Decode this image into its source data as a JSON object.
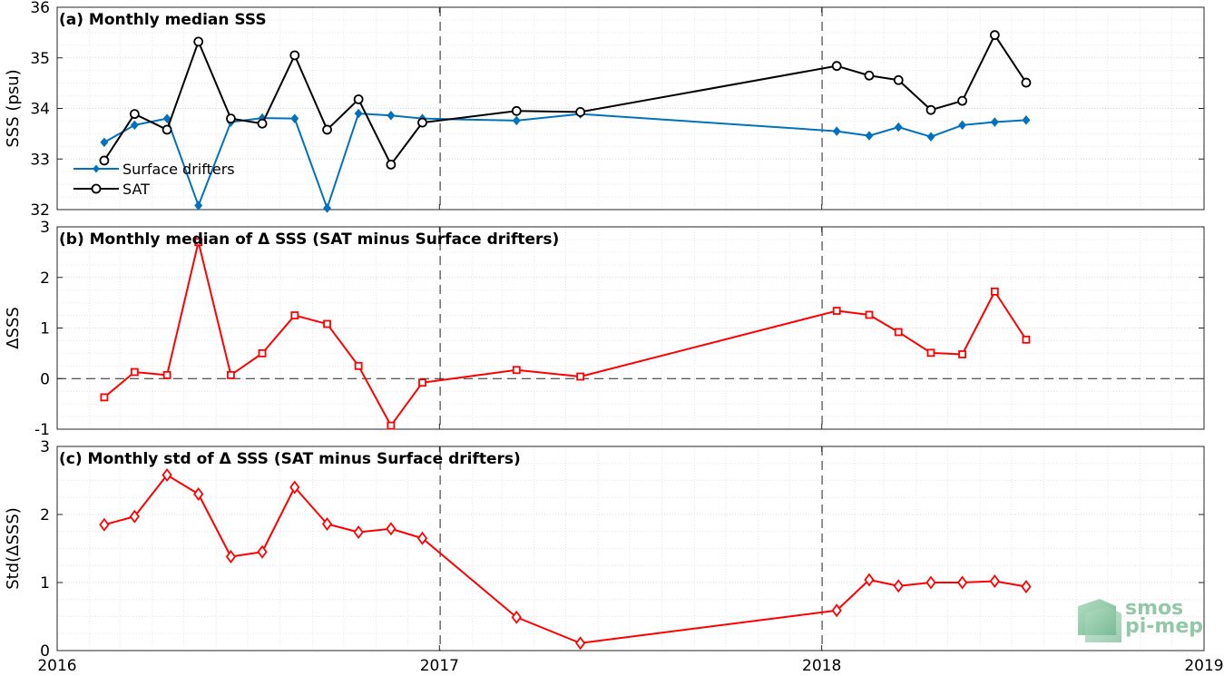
{
  "chart_data": [
    {
      "type": "line",
      "title": "(a) Monthly median SSS",
      "ylabel": "SSS (psu)",
      "ylim": [
        32,
        36
      ],
      "yticks": [
        32,
        33,
        34,
        35,
        36
      ],
      "grid": true,
      "legend_position": "bottom-left",
      "series": [
        {
          "name": "Surface drifters",
          "color": "#0072BD",
          "marker": "diamond",
          "x": [
            "2016-02-15",
            "2016-03-15",
            "2016-04-15",
            "2016-05-15",
            "2016-06-15",
            "2016-07-15",
            "2016-08-15",
            "2016-09-15",
            "2016-10-15",
            "2016-11-15",
            "2016-12-15",
            "2017-03-15",
            "2017-05-15",
            "2018-01-15",
            "2018-02-15",
            "2018-03-15",
            "2018-04-15",
            "2018-05-15",
            "2018-06-15",
            "2018-07-15"
          ],
          "y": [
            33.33,
            33.67,
            33.8,
            32.08,
            33.73,
            33.81,
            33.8,
            32.03,
            33.9,
            33.86,
            33.8,
            33.76,
            33.89,
            33.55,
            33.46,
            33.63,
            33.44,
            33.67,
            33.73,
            33.77
          ]
        },
        {
          "name": "SAT",
          "color": "#000000",
          "marker": "circle",
          "x": [
            "2016-02-15",
            "2016-03-15",
            "2016-04-15",
            "2016-05-15",
            "2016-06-15",
            "2016-07-15",
            "2016-08-15",
            "2016-09-15",
            "2016-10-15",
            "2016-11-15",
            "2016-12-15",
            "2017-03-15",
            "2017-05-15",
            "2018-01-15",
            "2018-02-15",
            "2018-03-15",
            "2018-04-15",
            "2018-05-15",
            "2018-06-15",
            "2018-07-15"
          ],
          "y": [
            32.97,
            33.89,
            33.58,
            35.32,
            33.8,
            33.7,
            35.05,
            33.58,
            34.18,
            32.89,
            33.72,
            33.95,
            33.93,
            34.84,
            34.65,
            34.56,
            33.97,
            34.15,
            35.45,
            34.51
          ]
        }
      ]
    },
    {
      "type": "line",
      "title": "(b) Monthly median of Δ SSS (SAT minus Surface drifters)",
      "ylabel": "ΔSSS",
      "ylim": [
        -1,
        3
      ],
      "yticks": [
        -1,
        0,
        1,
        2,
        3
      ],
      "grid": true,
      "reference_line": 0,
      "series": [
        {
          "color": "#ff0000",
          "marker": "square",
          "x": [
            "2016-02-15",
            "2016-03-15",
            "2016-04-15",
            "2016-05-15",
            "2016-06-15",
            "2016-07-15",
            "2016-08-15",
            "2016-09-15",
            "2016-10-15",
            "2016-11-15",
            "2016-12-15",
            "2017-03-15",
            "2017-05-15",
            "2018-01-15",
            "2018-02-15",
            "2018-03-15",
            "2018-04-15",
            "2018-05-15",
            "2018-06-15",
            "2018-07-15"
          ],
          "y": [
            -0.37,
            0.13,
            0.07,
            2.7,
            0.07,
            0.5,
            1.25,
            1.08,
            0.25,
            -0.93,
            -0.08,
            0.17,
            0.04,
            1.34,
            1.26,
            0.92,
            0.51,
            0.48,
            1.72,
            0.77
          ]
        }
      ]
    },
    {
      "type": "line",
      "title": "(c) Monthly std of Δ SSS (SAT minus Surface drifters)",
      "ylabel": "Std(ΔSSS)",
      "ylim": [
        0,
        3
      ],
      "yticks": [
        0,
        1,
        2,
        3
      ],
      "grid": true,
      "series": [
        {
          "color": "#ff0000",
          "marker": "diamond-open",
          "x": [
            "2016-02-15",
            "2016-03-15",
            "2016-04-15",
            "2016-05-15",
            "2016-06-15",
            "2016-07-15",
            "2016-08-15",
            "2016-09-15",
            "2016-10-15",
            "2016-11-15",
            "2016-12-15",
            "2017-03-15",
            "2017-05-15",
            "2018-01-15",
            "2018-02-15",
            "2018-03-15",
            "2018-04-15",
            "2018-05-15",
            "2018-06-15",
            "2018-07-15"
          ],
          "y": [
            1.85,
            1.97,
            2.58,
            2.3,
            1.38,
            1.45,
            2.4,
            1.86,
            1.74,
            1.79,
            1.65,
            0.49,
            0.11,
            0.59,
            1.04,
            0.95,
            1.0,
            1.0,
            1.02,
            0.94
          ]
        }
      ]
    }
  ],
  "x_axis": {
    "tick_labels": [
      "2016",
      "2017",
      "2018",
      "2019"
    ],
    "xlim": [
      "2016-01-01",
      "2019-01-01"
    ],
    "year_dividers": [
      "2017-01-01",
      "2018-01-01"
    ]
  },
  "logo": {
    "line1": "smos",
    "line2": "pi-mep"
  }
}
